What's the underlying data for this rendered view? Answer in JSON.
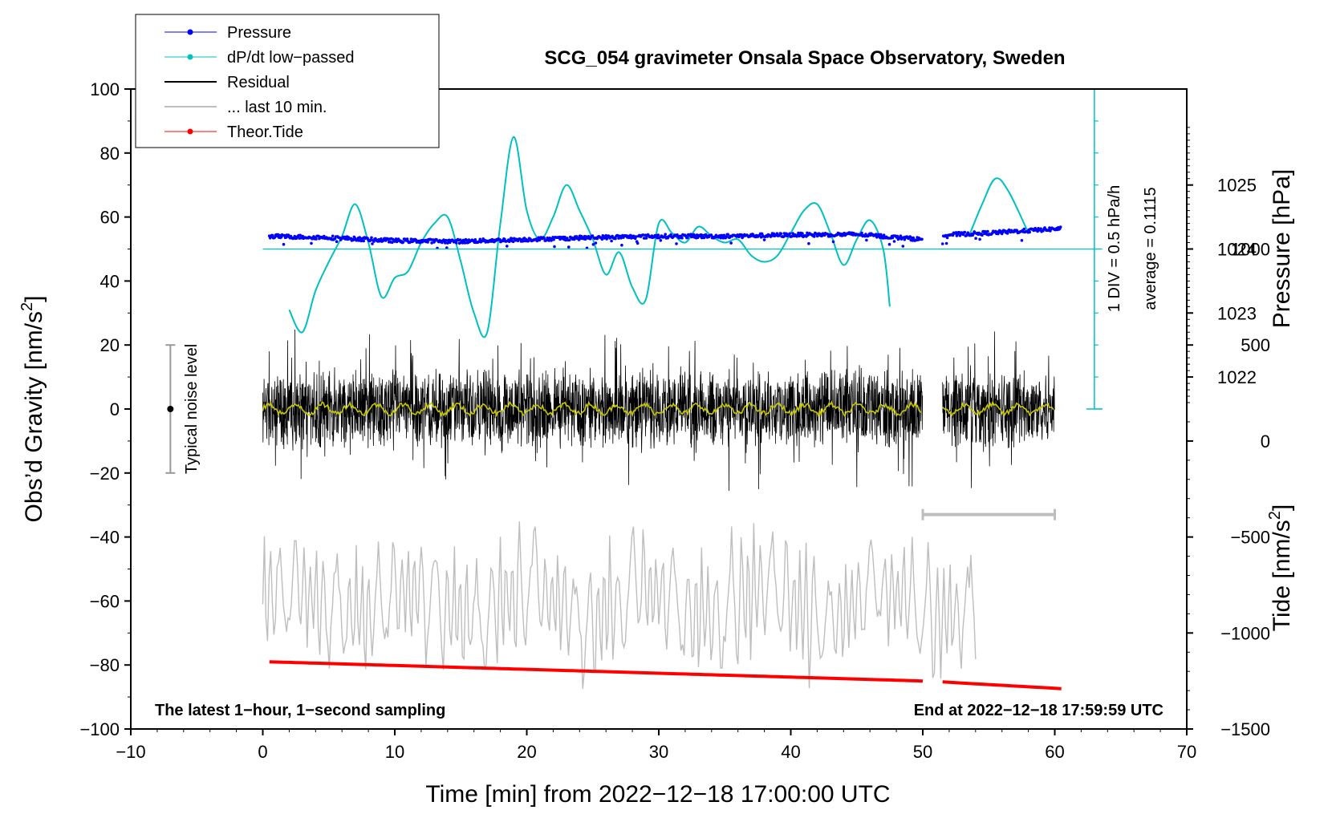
{
  "chart_data": {
    "type": "line",
    "title": "SCG_054 gravimeter Onsala Space Observatory, Sweden",
    "xlabel": "Time [min] from 2022−12−18 17:00:00 UTC",
    "ylabel_main": "Obs’d Gravity [nm/s",
    "ylabel_main_sup": "2",
    "ylabel_main_end": "]",
    "ylabel_pressure": "Pressure [hPa]",
    "ylabel_tide": "Tide [nm/s",
    "ylabel_tide_sup": "2",
    "ylabel_tide_end": "]",
    "xlim": [
      -10,
      70
    ],
    "ylim": [
      -100,
      100
    ],
    "x_ticks": [
      -10,
      0,
      10,
      20,
      30,
      40,
      50,
      60,
      70
    ],
    "x_tick_labels": [
      "−10",
      "0",
      "10",
      "20",
      "30",
      "40",
      "50",
      "60",
      "70"
    ],
    "y_ticks": [
      -100,
      -80,
      -60,
      -40,
      -20,
      0,
      20,
      40,
      60,
      80,
      100
    ],
    "y_tick_labels": [
      "−100",
      "−80",
      "−60",
      "−40",
      "−20",
      "0",
      "20",
      "40",
      "60",
      "80",
      "100"
    ],
    "pressure_axis": {
      "ticks": [
        1022,
        1023,
        1024,
        1025
      ],
      "tick_labels": [
        "1022",
        "1023",
        "1024",
        "1025"
      ],
      "value_at_y0": 1021.5,
      "units_per_y": 0.05
    },
    "tide_axis": {
      "ticks": [
        -1500,
        -1000,
        -500,
        0,
        500,
        1000
      ],
      "tick_labels": [
        "−1500",
        "−1000",
        "−500",
        "0",
        "500",
        "1000"
      ],
      "value_at_y": {
        "y": -100,
        "tide": -1500
      },
      "units_per_y": 16.667
    },
    "legend": {
      "position": "top-left",
      "entries": [
        {
          "label": "Pressure",
          "color": "#0000ff",
          "marker": "dot"
        },
        {
          "label": "dP/dt low−passed",
          "color": "#00c0c0",
          "marker": "dot"
        },
        {
          "label": "Residual",
          "color": "#000000",
          "marker": "line"
        },
        {
          "label": "... last 10 min.",
          "color": "#bebebe",
          "marker": "line"
        },
        {
          "label": "Theor.Tide",
          "color": "#ff0000",
          "marker": "dot"
        }
      ]
    },
    "series": [
      {
        "name": "Pressure",
        "color": "#0000ff",
        "axis": "pressure",
        "x": [
          0.5,
          5,
          10,
          15,
          20,
          25,
          30,
          35,
          40,
          45,
          50,
          51.5,
          55,
          60.5
        ],
        "values": [
          1024.2,
          1024.18,
          1024.13,
          1024.12,
          1024.15,
          1024.18,
          1024.2,
          1024.2,
          1024.22,
          1024.23,
          1024.15,
          1024.22,
          1024.25,
          1024.32
        ]
      },
      {
        "name": "dP/dt low-passed",
        "color": "#00c0c0",
        "axis": "main_y",
        "x": [
          2,
          3,
          4,
          5,
          6,
          7,
          8,
          9,
          10,
          11,
          12,
          13,
          14,
          15,
          16,
          17,
          18,
          19,
          20,
          21,
          22,
          23,
          24,
          25,
          26,
          27,
          28,
          29,
          30,
          31,
          32,
          33,
          34,
          35,
          36,
          37,
          38,
          39,
          40,
          41,
          42,
          43,
          44,
          45,
          46,
          47,
          47.5
        ],
        "values": [
          31,
          24,
          37,
          46,
          54,
          64,
          52,
          35,
          41,
          43,
          52,
          58,
          60,
          46,
          30,
          24,
          58,
          85,
          62,
          53,
          60,
          70,
          62,
          53,
          42,
          49,
          38,
          34,
          58,
          55,
          52,
          57,
          54,
          52,
          53,
          48,
          46,
          48,
          55,
          62,
          64,
          55,
          45,
          53,
          59,
          50,
          32
        ]
      },
      {
        "name": "dP/dt low-passed (after gap)",
        "color": "#00c0c0",
        "axis": "main_y",
        "x": [
          53.5,
          54.5,
          55.5,
          56.5,
          58
        ],
        "values": [
          54,
          64,
          72,
          68,
          55
        ]
      },
      {
        "name": "Residual",
        "color": "#000000",
        "axis": "main_y",
        "x_range": [
          0,
          60
        ],
        "range": [
          -32,
          32
        ],
        "gap": [
          50,
          51.5
        ]
      },
      {
        "name": "Smoothed residual",
        "color": "#c8c800",
        "axis": "main_y",
        "x_range": [
          0,
          60
        ],
        "values_approx": 0
      },
      {
        "name": "... last 10 min.",
        "color": "#bebebe",
        "axis": "main_y",
        "x_range": [
          0,
          54
        ],
        "range": [
          -90,
          -33
        ]
      },
      {
        "name": "Theor.Tide",
        "color": "#ff0000",
        "axis": "tide",
        "x": [
          0.5,
          50,
          51.5,
          60.5
        ],
        "values": [
          -1150,
          -1250,
          -1255,
          -1290
        ]
      }
    ],
    "annotations": {
      "scale_bar_label": "1 DIV = 0.5 hPa/h",
      "average_label": "average = 0.1115",
      "noise_label": "Typical noise level",
      "noise_range": [
        -20,
        20
      ],
      "window_bar": [
        50,
        60
      ],
      "bottom_left_note": "The latest 1−hour, 1−second sampling",
      "bottom_right_note": "End at 2022−12−18 17:59:59 UTC"
    }
  }
}
